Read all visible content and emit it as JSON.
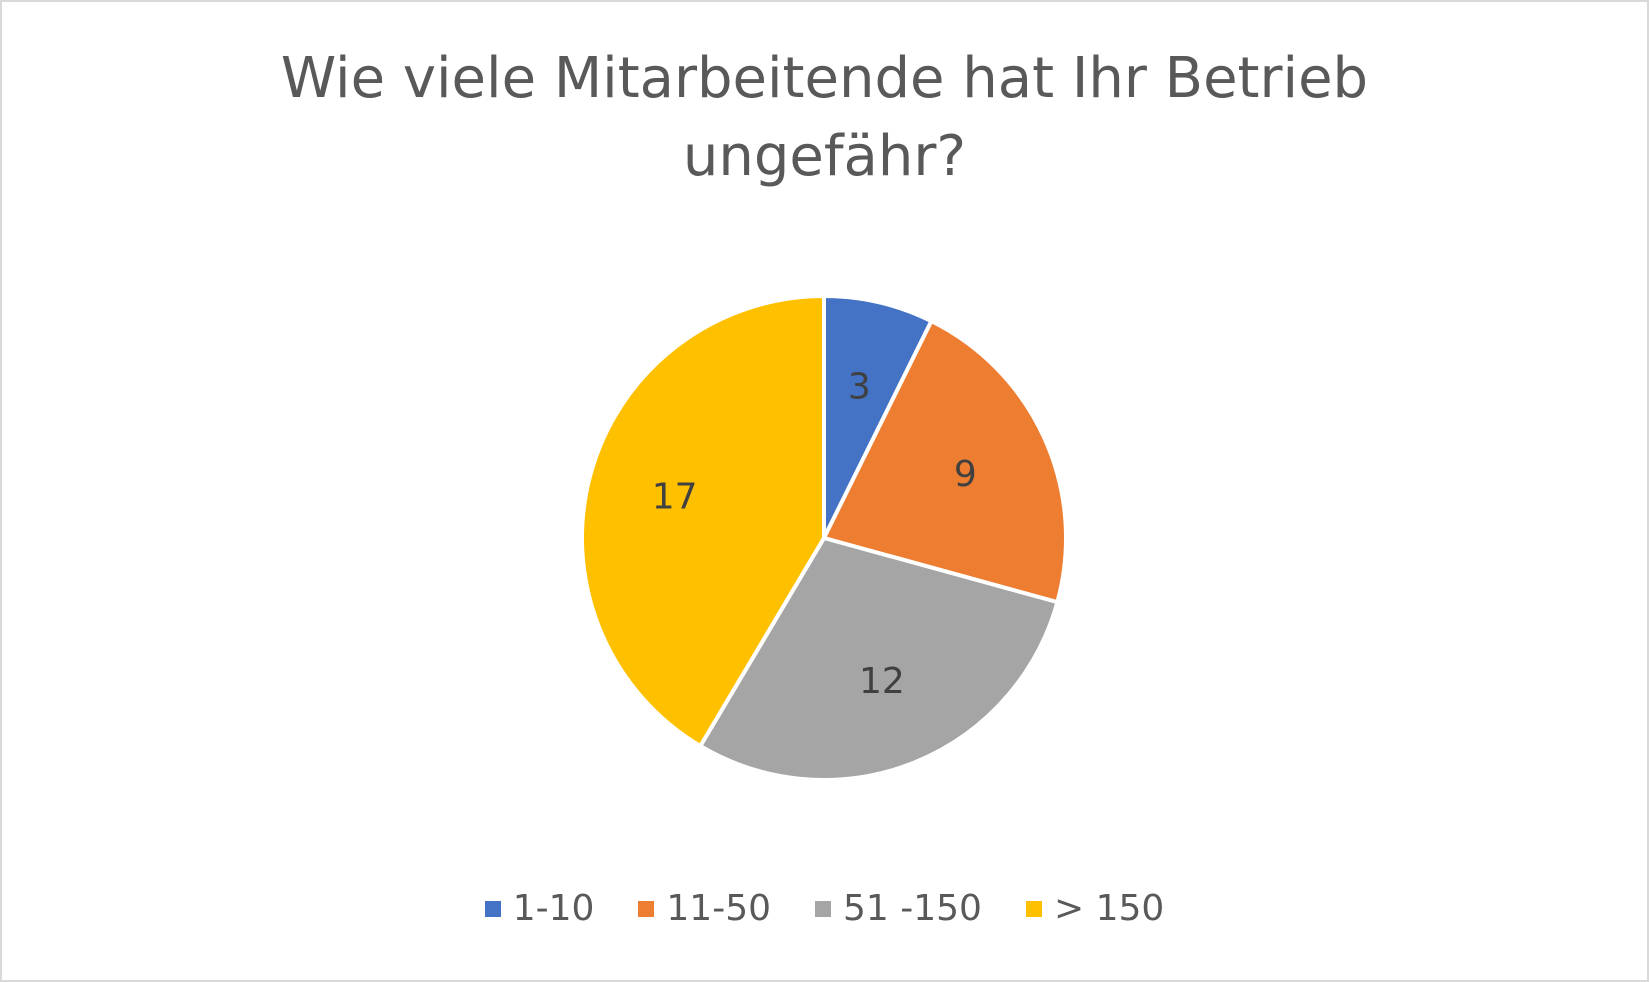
{
  "chart_data": {
    "type": "pie",
    "title_lines": [
      "Wie viele Mitarbeitende hat Ihr Betrieb",
      "ungefähr?"
    ],
    "categories": [
      "1-10",
      "11-50",
      "51 -150",
      "> 150"
    ],
    "values": [
      3,
      9,
      12,
      17
    ],
    "data_labels": [
      "3",
      "9",
      "12",
      "17"
    ],
    "colors": [
      "#4472c4",
      "#ed7d31",
      "#a5a5a5",
      "#ffc000"
    ],
    "legend_position": "bottom",
    "start_angle": "12 o'clock",
    "direction": "clockwise"
  }
}
